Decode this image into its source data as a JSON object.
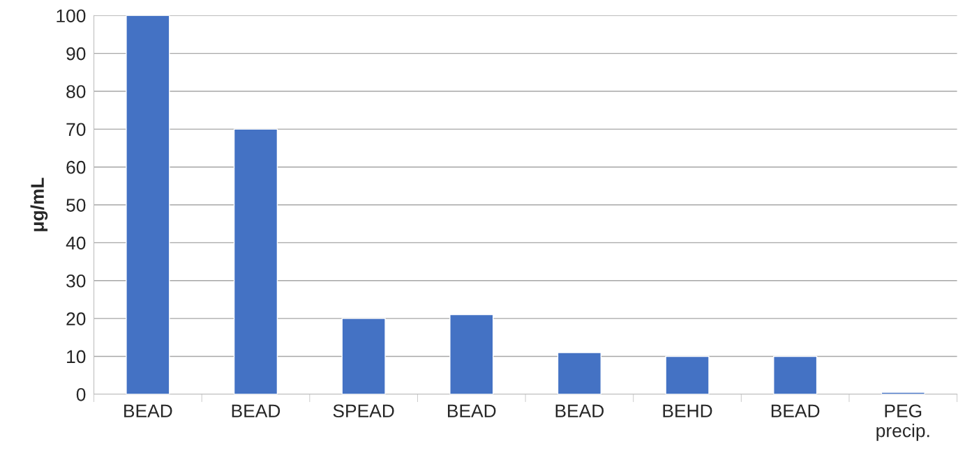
{
  "chart_data": {
    "type": "bar",
    "ylabel": "μg/mL",
    "categories": [
      "BEAD",
      "BEAD",
      "SPEAD",
      "BEAD",
      "BEAD",
      "BEHD",
      "BEAD",
      "PEG\nprecip."
    ],
    "values": [
      100,
      70,
      20,
      21,
      11,
      10,
      10,
      0.5
    ],
    "color": "#4472c4",
    "ylim": [
      0,
      100
    ],
    "yticks": [
      0,
      10,
      20,
      30,
      40,
      50,
      60,
      70,
      80,
      90,
      100
    ],
    "grid": "y",
    "legend": false
  }
}
